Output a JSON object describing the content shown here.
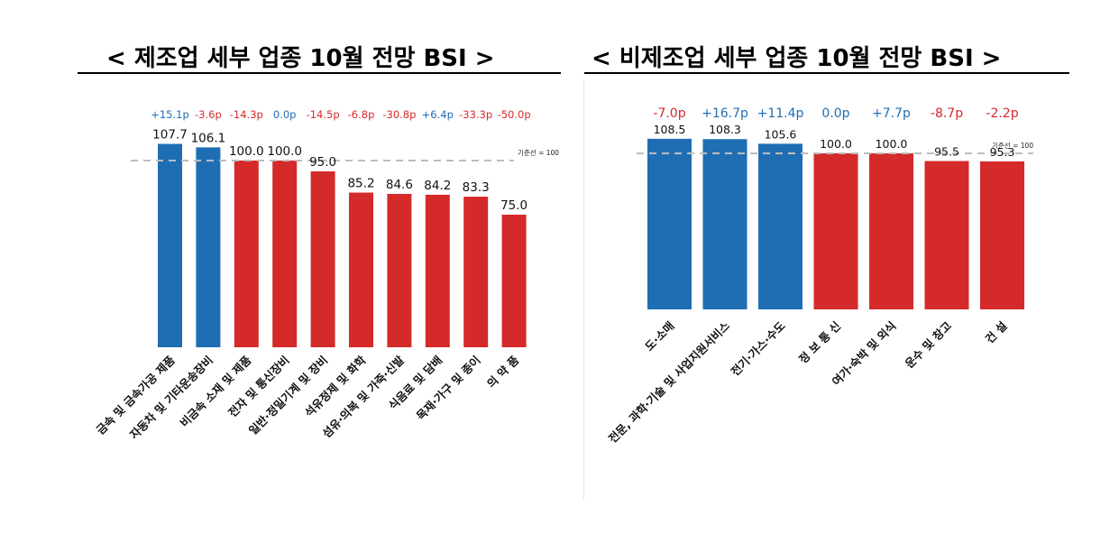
{
  "charts": [
    {
      "title": "< 제조업 세부 업종 10월 전망 BSI >",
      "ref_label": "기준선 = 100"
    },
    {
      "title": "< 비제조업 세부 업종 10월 전망 BSI >",
      "ref_label": "기준선 = 100"
    }
  ],
  "colors": {
    "increase": "#1f6eb4",
    "decrease": "#d52a2a",
    "refline": "#bdbdbd"
  },
  "chart_data": [
    {
      "type": "bar",
      "title": "< 제조업 세부 업종 10월 전망 BSI >",
      "reference_line": 100,
      "reference_label": "기준선 = 100",
      "categories": [
        "금속 및 금속가공 제품",
        "자동차 및 기타운송장비",
        "비금속 소재 및 제품",
        "전자 및 통신장비",
        "일반·정밀기계 및 장비",
        "석유정제 및 화학",
        "섬유·의복 및 가죽·신발",
        "식음료 및 담배",
        "목재·가구 및 종이",
        "의 약 품"
      ],
      "values": [
        107.7,
        106.1,
        100.0,
        100.0,
        95.0,
        85.2,
        84.6,
        84.2,
        83.3,
        75.0
      ],
      "value_labels": [
        "107.7",
        "106.1",
        "100.0",
        "100.0",
        "95.0",
        "85.2",
        "84.6",
        "84.2",
        "83.3",
        "75.0"
      ],
      "changes": [
        "+15.1p",
        "-3.6p",
        "-14.3p",
        "0.0p",
        "-14.5p",
        "-6.8p",
        "-30.8p",
        "+6.4p",
        "-33.3p",
        "-50.0p"
      ],
      "bar_colors": [
        "blue",
        "blue",
        "red",
        "red",
        "red",
        "red",
        "red",
        "red",
        "red",
        "red"
      ],
      "change_colors": [
        "blue",
        "red",
        "red",
        "blue",
        "red",
        "red",
        "red",
        "blue",
        "red",
        "red"
      ],
      "grid": false
    },
    {
      "type": "bar",
      "title": "< 비제조업 세부 업종 10월 전망 BSI >",
      "reference_line": 100,
      "reference_label": "기준선 = 100",
      "categories": [
        "도·소매",
        "전문, 과학·기술 및 사업지원서비스",
        "전기·가스·수도",
        "정 보 통 신",
        "여가·숙박 및 외식",
        "운수 및 창고",
        "건 설"
      ],
      "values": [
        108.5,
        108.3,
        105.6,
        100.0,
        100.0,
        95.5,
        95.3
      ],
      "value_labels": [
        "108.5",
        "108.3",
        "105.6",
        "100.0",
        "100.0",
        "95.5",
        "95.3"
      ],
      "changes": [
        "-7.0p",
        "+16.7p",
        "+11.4p",
        "0.0p",
        "+7.7p",
        "-8.7p",
        "-2.2p"
      ],
      "bar_colors": [
        "blue",
        "blue",
        "blue",
        "red",
        "red",
        "red",
        "red"
      ],
      "change_colors": [
        "red",
        "blue",
        "blue",
        "blue",
        "blue",
        "red",
        "red"
      ],
      "grid": false
    }
  ]
}
